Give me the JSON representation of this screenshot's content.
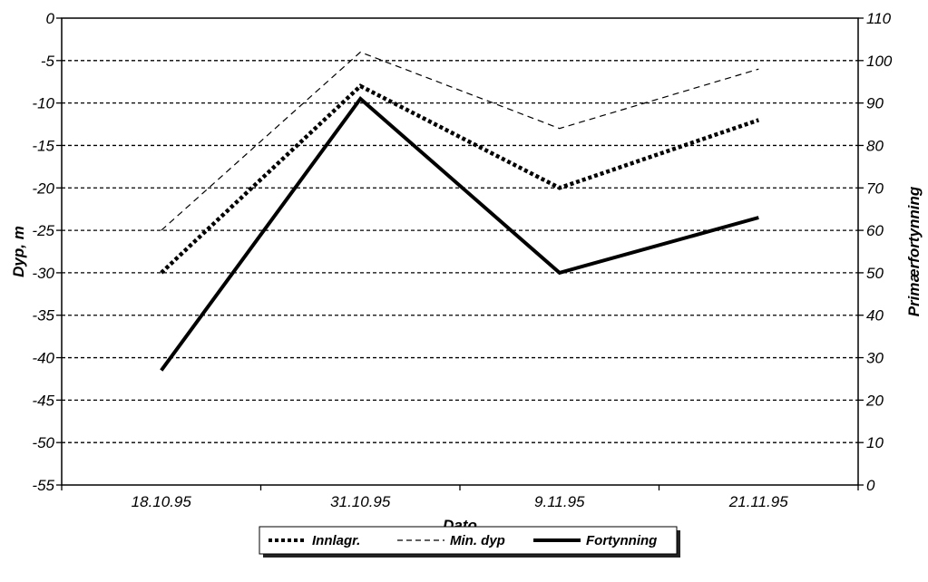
{
  "chart_data": {
    "type": "line",
    "categories": [
      "18.10.95",
      "31.10.95",
      "9.11.95",
      "21.11.95"
    ],
    "xlabel": "Dato",
    "ylabel_left": "Dyp, m",
    "ylabel_right": "Primærfortynning",
    "ylim_left": [
      -55,
      0
    ],
    "ylim_right": [
      0,
      110
    ],
    "yticks_left": [
      "0",
      "-5",
      "-10",
      "-15",
      "-20",
      "-25",
      "-30",
      "-35",
      "-40",
      "-45",
      "-50",
      "-55"
    ],
    "yticks_right": [
      "110",
      "100",
      "90",
      "80",
      "70",
      "60",
      "50",
      "40",
      "30",
      "20",
      "10",
      "0"
    ],
    "grid": "horizontal-dashed",
    "legend_position": "bottom-center",
    "series": [
      {
        "name": "Innlagr.",
        "axis": "left",
        "style": "thick-dotted",
        "values": [
          -30,
          -8,
          -20,
          -12
        ]
      },
      {
        "name": "Min. dyp",
        "axis": "left",
        "style": "thin-dashed",
        "values": [
          -25,
          -4,
          -13,
          -6
        ]
      },
      {
        "name": "Fortynning",
        "axis": "right",
        "style": "solid",
        "values": [
          27,
          91,
          50,
          63
        ]
      }
    ]
  }
}
